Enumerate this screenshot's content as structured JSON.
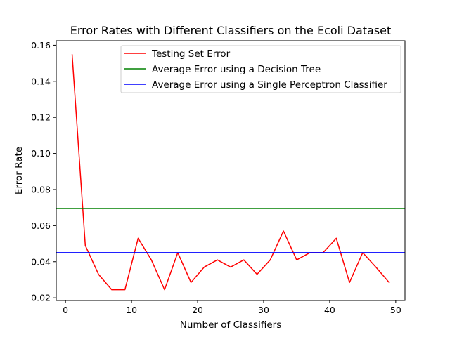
{
  "chart_data": {
    "type": "line",
    "title": "Error Rates with Different Classifiers on the Ecoli Dataset",
    "xlabel": "Number of Classifiers",
    "ylabel": "Error Rate",
    "xlim": [
      -1.4,
      51.4
    ],
    "ylim": [
      0.0185,
      0.1625
    ],
    "xticks": [
      0,
      10,
      20,
      30,
      40,
      50
    ],
    "xtick_labels": [
      "0",
      "10",
      "20",
      "30",
      "40",
      "50"
    ],
    "yticks": [
      0.02,
      0.04,
      0.06,
      0.08,
      0.1,
      0.12,
      0.14,
      0.16
    ],
    "ytick_labels": [
      "0.02",
      "0.04",
      "0.06",
      "0.08",
      "0.10",
      "0.12",
      "0.14",
      "0.16"
    ],
    "grid": false,
    "legend_position": "top-right",
    "series": [
      {
        "name": "Testing Set Error",
        "color": "#ff0000",
        "style": "line",
        "x": [
          1,
          3,
          5,
          7,
          9,
          11,
          13,
          15,
          17,
          19,
          21,
          23,
          25,
          27,
          29,
          31,
          33,
          35,
          37,
          39,
          41,
          43,
          45,
          47,
          49
        ],
        "y": [
          0.155,
          0.049,
          0.033,
          0.0245,
          0.0245,
          0.053,
          0.041,
          0.0245,
          0.045,
          0.0285,
          0.037,
          0.041,
          0.037,
          0.041,
          0.033,
          0.041,
          0.057,
          0.041,
          0.045,
          0.045,
          0.053,
          0.0285,
          0.045,
          0.037,
          0.0285
        ]
      },
      {
        "name": "Average Error using a Decision Tree",
        "color": "#008000",
        "style": "hline",
        "value": 0.0695
      },
      {
        "name": "Average Error using a Single Perceptron Classifier",
        "color": "#0000ff",
        "style": "hline",
        "value": 0.045
      }
    ]
  }
}
